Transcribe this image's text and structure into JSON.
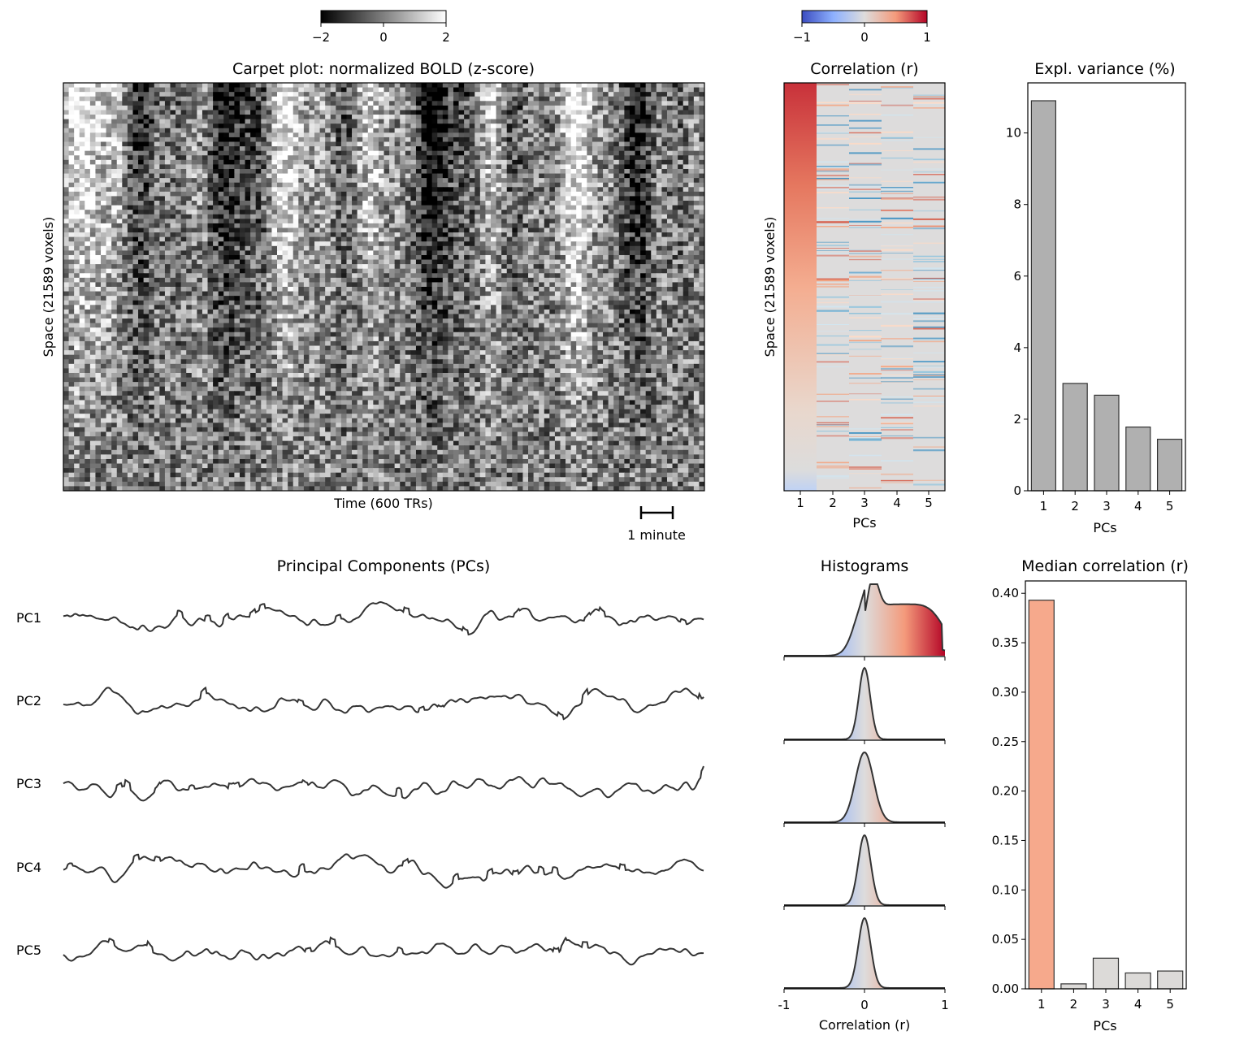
{
  "carpet": {
    "title": "Carpet plot: normalized BOLD (z-score)",
    "xlabel": "Time (600 TRs)",
    "ylabel": "Space (21589 voxels)",
    "scale_bar_label": "1 minute",
    "colorbar": {
      "ticks": [
        "−2",
        "0",
        "2"
      ],
      "colormap": "gray",
      "range": [
        -2,
        2
      ]
    }
  },
  "correlation": {
    "title": "Correlation (r)",
    "xlabel": "PCs",
    "ylabel": "Space (21589 voxels)",
    "xticks": [
      "1",
      "2",
      "3",
      "4",
      "5"
    ],
    "colorbar": {
      "ticks": [
        "−1",
        "0",
        "1"
      ],
      "colormap": "coolwarm",
      "range": [
        -1,
        1
      ]
    }
  },
  "pcs": {
    "title": "Principal Components (PCs)",
    "labels": [
      "PC1",
      "PC2",
      "PC3",
      "PC4",
      "PC5"
    ],
    "line_color": "#333333"
  },
  "histograms": {
    "title": "Histograms",
    "xlabel": "Correlation (r)",
    "xticks": [
      "-1",
      "0",
      "1"
    ]
  },
  "chart_data": [
    {
      "type": "bar",
      "title": "Expl. variance (%)",
      "xlabel": "PCs",
      "ylabel": "",
      "categories": [
        "1",
        "2",
        "3",
        "4",
        "5"
      ],
      "values": [
        10.9,
        3.0,
        2.67,
        1.78,
        1.44
      ],
      "yticks": [
        "0",
        "2",
        "4",
        "6",
        "8",
        "10"
      ],
      "ylim": [
        0,
        11.4
      ],
      "colors": [
        "#b0b0b0",
        "#b0b0b0",
        "#b0b0b0",
        "#b0b0b0",
        "#b0b0b0"
      ]
    },
    {
      "type": "bar",
      "title": "Median correlation (r)",
      "xlabel": "PCs",
      "ylabel": "",
      "categories": [
        "1",
        "2",
        "3",
        "4",
        "5"
      ],
      "values": [
        0.393,
        0.005,
        0.031,
        0.016,
        0.018
      ],
      "yticks": [
        "0.00",
        "0.05",
        "0.10",
        "0.15",
        "0.20",
        "0.25",
        "0.30",
        "0.35",
        "0.40"
      ],
      "ylim": [
        0,
        0.4125
      ],
      "colors": [
        "#f6a98c",
        "#dcdad8",
        "#dcdad8",
        "#dcdad8",
        "#dcdad8"
      ]
    }
  ]
}
